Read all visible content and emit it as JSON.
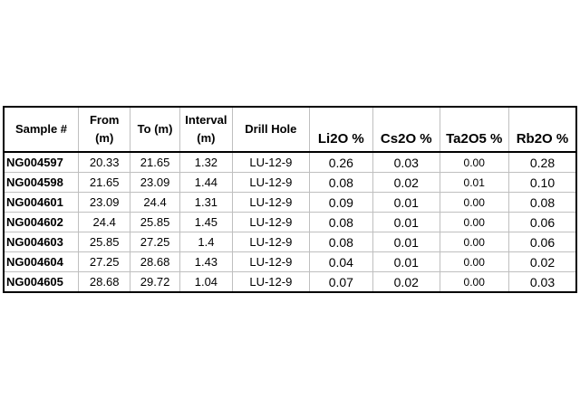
{
  "table": {
    "headers": {
      "sample": "Sample #",
      "from_line1": "From",
      "from_line2": "(m)",
      "to": "To (m)",
      "interval_line1": "Interval",
      "interval_line2": "(m)",
      "drill_hole": "Drill Hole",
      "li2o": "Li2O %",
      "cs2o": "Cs2O %",
      "ta2o5": "Ta2O5 %",
      "rb2o": "Rb2O %"
    },
    "rows": [
      {
        "sample": "NG004597",
        "from": "20.33",
        "to": "21.65",
        "interval": "1.32",
        "drill_hole": "LU-12-9",
        "li2o": "0.26",
        "cs2o": "0.03",
        "ta2o5": "0.00",
        "rb2o": "0.28"
      },
      {
        "sample": "NG004598",
        "from": "21.65",
        "to": "23.09",
        "interval": "1.44",
        "drill_hole": "LU-12-9",
        "li2o": "0.08",
        "cs2o": "0.02",
        "ta2o5": "0.01",
        "rb2o": "0.10"
      },
      {
        "sample": "NG004601",
        "from": "23.09",
        "to": "24.4",
        "interval": "1.31",
        "drill_hole": "LU-12-9",
        "li2o": "0.09",
        "cs2o": "0.01",
        "ta2o5": "0.00",
        "rb2o": "0.08"
      },
      {
        "sample": "NG004602",
        "from": "24.4",
        "to": "25.85",
        "interval": "1.45",
        "drill_hole": "LU-12-9",
        "li2o": "0.08",
        "cs2o": "0.01",
        "ta2o5": "0.00",
        "rb2o": "0.06"
      },
      {
        "sample": "NG004603",
        "from": "25.85",
        "to": "27.25",
        "interval": "1.4",
        "drill_hole": "LU-12-9",
        "li2o": "0.08",
        "cs2o": "0.01",
        "ta2o5": "0.00",
        "rb2o": "0.06"
      },
      {
        "sample": "NG004604",
        "from": "27.25",
        "to": "28.68",
        "interval": "1.43",
        "drill_hole": "LU-12-9",
        "li2o": "0.04",
        "cs2o": "0.01",
        "ta2o5": "0.00",
        "rb2o": "0.02"
      },
      {
        "sample": "NG004605",
        "from": "28.68",
        "to": "29.72",
        "interval": "1.04",
        "drill_hole": "LU-12-9",
        "li2o": "0.07",
        "cs2o": "0.02",
        "ta2o5": "0.00",
        "rb2o": "0.03"
      }
    ]
  }
}
